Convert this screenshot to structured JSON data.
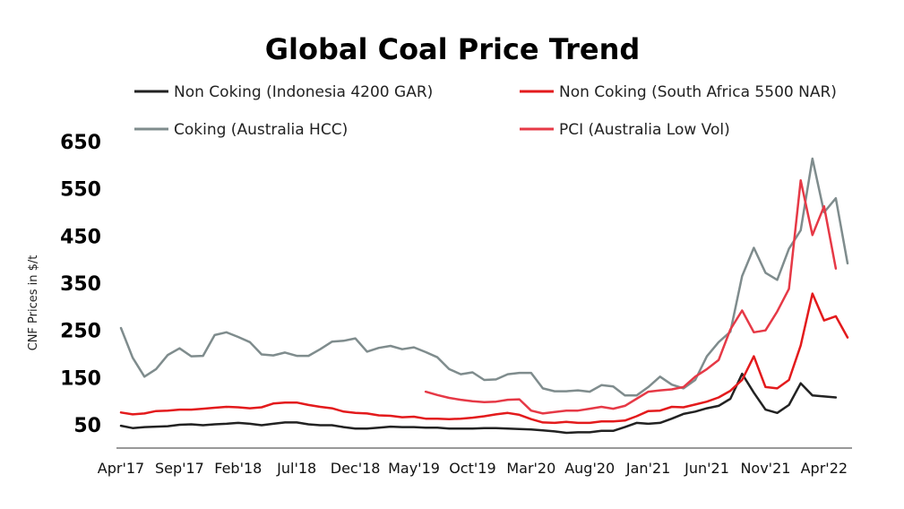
{
  "chart_data": {
    "type": "line",
    "title": "Global Coal Price Trend",
    "ylabel": "CNF Prices in $/t",
    "xlabel": "",
    "ylim": [
      0,
      650
    ],
    "yticks": [
      50,
      150,
      250,
      350,
      450,
      550,
      650
    ],
    "grid": false,
    "legend_position": "top",
    "x": [
      "Apr'17",
      "May'17",
      "Jun'17",
      "Jul'17",
      "Aug'17",
      "Sep'17",
      "Oct'17",
      "Nov'17",
      "Dec'17",
      "Jan'18",
      "Feb'18",
      "Mar'18",
      "Apr'18",
      "May'18",
      "Jun'18",
      "Jul'18",
      "Aug'18",
      "Sep'18",
      "Oct'18",
      "Nov'18",
      "Dec'18",
      "Jan'19",
      "Feb'19",
      "Mar'19",
      "Apr'19",
      "May'19",
      "Jun'19",
      "Jul'19",
      "Aug'19",
      "Sep'19",
      "Oct'19",
      "Nov'19",
      "Dec'19",
      "Jan'20",
      "Feb'20",
      "Mar'20",
      "Apr'20",
      "May'20",
      "Jun'20",
      "Jul'20",
      "Aug'20",
      "Sep'20",
      "Oct'20",
      "Nov'20",
      "Dec'20",
      "Jan'21",
      "Feb'21",
      "Mar'21",
      "Apr'21",
      "May'21",
      "Jun'21",
      "Jul'21",
      "Aug'21",
      "Sep'21",
      "Oct'21",
      "Nov'21",
      "Dec'21",
      "Jan'22",
      "Feb'22",
      "Mar'22",
      "Apr'22",
      "May'22",
      "Jun'22"
    ],
    "xtick_labels": [
      "Apr'17",
      "Sep'17",
      "Feb'18",
      "Jul'18",
      "Dec'18",
      "May'19",
      "Oct'19",
      "Mar'20",
      "Aug'20",
      "Jan'21",
      "Jun'21",
      "Nov'21",
      "Apr'22"
    ],
    "series": [
      {
        "name": "Non Coking (Indonesia 4200 GAR)",
        "color": "#222222",
        "values": [
          48,
          43,
          45,
          46,
          47,
          50,
          51,
          49,
          51,
          52,
          54,
          52,
          49,
          52,
          55,
          55,
          51,
          49,
          49,
          45,
          42,
          42,
          44,
          46,
          45,
          45,
          44,
          44,
          42,
          42,
          42,
          43,
          43,
          42,
          41,
          40,
          38,
          36,
          33,
          34,
          34,
          37,
          37,
          45,
          54,
          52,
          54,
          63,
          73,
          78,
          85,
          90,
          105,
          158,
          118,
          82,
          75,
          92,
          138,
          112,
          110,
          108,
          null
        ],
        "values_tail": [
          108
        ]
      },
      {
        "name": "Non Coking (South Africa 5500 NAR)",
        "color": "#e31a1c",
        "values": [
          76,
          72,
          74,
          79,
          80,
          82,
          82,
          84,
          86,
          88,
          87,
          85,
          87,
          95,
          97,
          97,
          92,
          88,
          85,
          78,
          75,
          74,
          70,
          69,
          66,
          67,
          63,
          63,
          62,
          63,
          65,
          68,
          72,
          75,
          71,
          62,
          55,
          54,
          56,
          54,
          54,
          57,
          57,
          59,
          68,
          79,
          80,
          88,
          87,
          93,
          99,
          108,
          122,
          145,
          195,
          130,
          127,
          145,
          218,
          328,
          271,
          280,
          235
        ]
      },
      {
        "name": "Coking (Australia HCC)",
        "color": "#7f8c8d",
        "values": [
          255,
          192,
          152,
          168,
          198,
          212,
          195,
          196,
          240,
          246,
          236,
          225,
          199,
          197,
          203,
          196,
          196,
          210,
          226,
          228,
          233,
          205,
          213,
          217,
          210,
          214,
          204,
          193,
          168,
          157,
          161,
          145,
          146,
          157,
          160,
          160,
          127,
          121,
          121,
          123,
          120,
          134,
          131,
          112,
          112,
          130,
          152,
          135,
          127,
          145,
          195,
          225,
          247,
          365,
          425,
          372,
          357,
          423,
          462,
          614,
          500,
          530,
          392
        ]
      },
      {
        "name": "PCI (Australia Low Vol)",
        "color": "#e63946",
        "values": [
          null,
          null,
          null,
          null,
          null,
          null,
          null,
          null,
          null,
          null,
          null,
          null,
          null,
          null,
          null,
          null,
          null,
          null,
          null,
          null,
          null,
          null,
          null,
          null,
          null,
          null,
          120,
          113,
          107,
          103,
          100,
          98,
          99,
          103,
          104,
          80,
          74,
          77,
          80,
          80,
          84,
          88,
          84,
          90,
          105,
          120,
          123,
          125,
          130,
          152,
          168,
          187,
          252,
          292,
          246,
          250,
          290,
          338,
          568,
          452,
          513,
          381,
          null
        ],
        "values_tail": [
          381
        ]
      }
    ]
  }
}
